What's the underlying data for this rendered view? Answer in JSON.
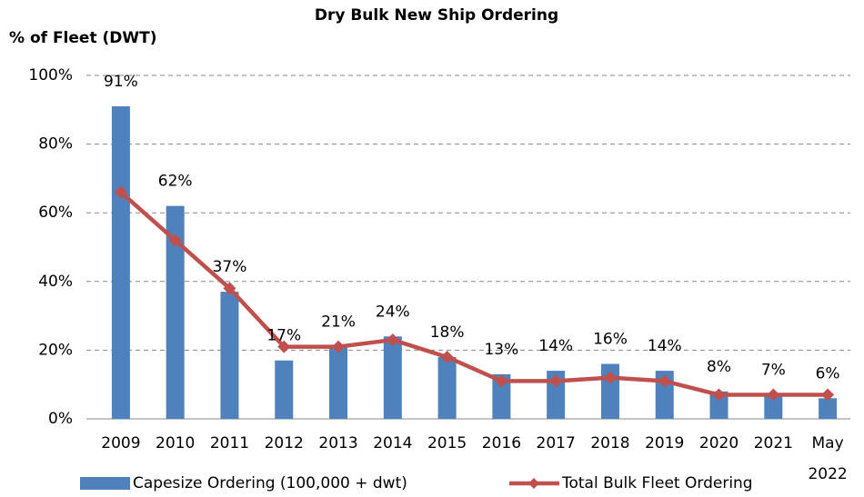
{
  "chart_data": {
    "type": "bar",
    "title": "Dry Bulk New Ship Ordering",
    "y_axis_label": "% of Fleet (DWT)",
    "categories": [
      "2009",
      "2010",
      "2011",
      "2012",
      "2013",
      "2014",
      "2015",
      "2016",
      "2017",
      "2018",
      "2019",
      "2020",
      "2021",
      "May 2022"
    ],
    "series": [
      {
        "name": "Capesize Ordering (100,000 + dwt)",
        "type": "bar",
        "color": "#4f81bd",
        "values": [
          91,
          62,
          37,
          17,
          21,
          24,
          18,
          13,
          14,
          16,
          14,
          8,
          7,
          6
        ],
        "value_labels": [
          "91%",
          "62%",
          "37%",
          "17%",
          "21%",
          "24%",
          "18%",
          "13%",
          "14%",
          "16%",
          "14%",
          "8%",
          "7%",
          "6%"
        ]
      },
      {
        "name": "Total Bulk Fleet Ordering",
        "type": "line",
        "color": "#c0504d",
        "values": [
          66,
          52,
          38,
          21,
          21,
          23,
          18,
          11,
          11,
          12,
          11,
          7,
          7,
          7
        ]
      }
    ],
    "ylim": [
      0,
      100
    ],
    "yticks": [
      {
        "value": 0,
        "label": "0%"
      },
      {
        "value": 20,
        "label": "20%"
      },
      {
        "value": 40,
        "label": "40%"
      },
      {
        "value": 60,
        "label": "60%"
      },
      {
        "value": 80,
        "label": "80%"
      },
      {
        "value": 100,
        "label": "100%"
      }
    ],
    "grid": true,
    "legend": "bottom"
  }
}
